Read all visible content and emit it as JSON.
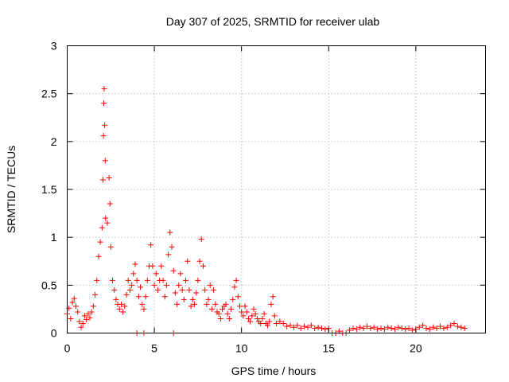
{
  "chart_data": {
    "type": "scatter",
    "title": "Day 307 of 2025, SRMTID for receiver ulab",
    "xlabel": "GPS time / hours",
    "ylabel": "SRMTID / TECUs",
    "xlim": [
      0,
      24
    ],
    "ylim": [
      0,
      3
    ],
    "xticks": [
      0,
      5,
      10,
      15,
      20
    ],
    "yticks": [
      0,
      0.5,
      1,
      1.5,
      2,
      2.5,
      3
    ],
    "xtick_labels": [
      "0",
      "5",
      "10",
      "15",
      "20"
    ],
    "ytick_labels": [
      "0",
      "0.5",
      "1",
      "1.5",
      "2",
      "2.5",
      "3"
    ],
    "grid": true,
    "marker": "plus",
    "color": "#ff0000",
    "series": [
      {
        "name": "SRMTID",
        "points": [
          [
            0.0,
            0.2
          ],
          [
            0.1,
            0.26
          ],
          [
            0.2,
            0.15
          ],
          [
            0.3,
            0.32
          ],
          [
            0.4,
            0.36
          ],
          [
            0.5,
            0.28
          ],
          [
            0.6,
            0.22
          ],
          [
            0.7,
            0.12
          ],
          [
            0.8,
            0.06
          ],
          [
            0.9,
            0.1
          ],
          [
            1.0,
            0.18
          ],
          [
            1.1,
            0.14
          ],
          [
            1.2,
            0.2
          ],
          [
            1.3,
            0.16
          ],
          [
            1.4,
            0.22
          ],
          [
            1.5,
            0.28
          ],
          [
            1.6,
            0.4
          ],
          [
            1.7,
            0.55
          ],
          [
            1.8,
            0.8
          ],
          [
            1.9,
            0.95
          ],
          [
            2.0,
            1.1
          ],
          [
            2.05,
            1.6
          ],
          [
            2.08,
            2.06
          ],
          [
            2.1,
            2.4
          ],
          [
            2.12,
            2.55
          ],
          [
            2.15,
            2.17
          ],
          [
            2.18,
            1.8
          ],
          [
            2.2,
            1.2
          ],
          [
            2.3,
            1.15
          ],
          [
            2.4,
            1.62
          ],
          [
            2.45,
            1.35
          ],
          [
            2.5,
            0.9
          ],
          [
            2.6,
            0.55
          ],
          [
            2.7,
            0.45
          ],
          [
            2.8,
            0.35
          ],
          [
            2.9,
            0.3
          ],
          [
            3.0,
            0.25
          ],
          [
            3.1,
            0.3
          ],
          [
            3.2,
            0.22
          ],
          [
            3.3,
            0.28
          ],
          [
            3.4,
            0.4
          ],
          [
            3.5,
            0.55
          ],
          [
            3.6,
            0.45
          ],
          [
            3.7,
            0.5
          ],
          [
            3.8,
            0.62
          ],
          [
            3.9,
            0.72
          ],
          [
            4.0,
            0.55
          ],
          [
            4.1,
            0.38
          ],
          [
            4.2,
            0.48
          ],
          [
            4.3,
            0.3
          ],
          [
            4.4,
            0.25
          ],
          [
            4.5,
            0.38
          ],
          [
            4.6,
            0.55
          ],
          [
            4.7,
            0.7
          ],
          [
            4.8,
            0.92
          ],
          [
            4.9,
            0.7
          ],
          [
            5.0,
            0.5
          ],
          [
            5.1,
            0.62
          ],
          [
            5.2,
            0.45
          ],
          [
            5.3,
            0.55
          ],
          [
            5.4,
            0.7
          ],
          [
            5.5,
            0.55
          ],
          [
            5.6,
            0.38
          ],
          [
            5.7,
            0.5
          ],
          [
            5.8,
            0.82
          ],
          [
            5.9,
            1.05
          ],
          [
            6.0,
            0.9
          ],
          [
            6.1,
            0.65
          ],
          [
            6.2,
            0.42
          ],
          [
            6.3,
            0.3
          ],
          [
            6.4,
            0.5
          ],
          [
            6.5,
            0.62
          ],
          [
            6.6,
            0.45
          ],
          [
            6.7,
            0.35
          ],
          [
            6.8,
            0.55
          ],
          [
            6.9,
            0.75
          ],
          [
            7.0,
            0.45
          ],
          [
            7.1,
            0.28
          ],
          [
            7.2,
            0.35
          ],
          [
            7.3,
            0.3
          ],
          [
            7.4,
            0.42
          ],
          [
            7.5,
            0.55
          ],
          [
            7.6,
            0.75
          ],
          [
            7.7,
            0.98
          ],
          [
            7.8,
            0.7
          ],
          [
            7.9,
            0.45
          ],
          [
            8.0,
            0.3
          ],
          [
            8.1,
            0.35
          ],
          [
            8.2,
            0.5
          ],
          [
            8.3,
            0.25
          ],
          [
            8.4,
            0.45
          ],
          [
            8.5,
            0.3
          ],
          [
            8.6,
            0.22
          ],
          [
            8.7,
            0.2
          ],
          [
            8.8,
            0.15
          ],
          [
            8.9,
            0.25
          ],
          [
            9.0,
            0.28
          ],
          [
            9.1,
            0.3
          ],
          [
            9.2,
            0.2
          ],
          [
            9.3,
            0.15
          ],
          [
            9.4,
            0.25
          ],
          [
            9.5,
            0.35
          ],
          [
            9.6,
            0.48
          ],
          [
            9.7,
            0.55
          ],
          [
            9.8,
            0.38
          ],
          [
            9.9,
            0.28
          ],
          [
            10.0,
            0.22
          ],
          [
            10.1,
            0.18
          ],
          [
            10.2,
            0.28
          ],
          [
            10.3,
            0.22
          ],
          [
            10.4,
            0.15
          ],
          [
            10.5,
            0.12
          ],
          [
            10.6,
            0.18
          ],
          [
            10.7,
            0.25
          ],
          [
            10.8,
            0.2
          ],
          [
            10.9,
            0.15
          ],
          [
            11.0,
            0.12
          ],
          [
            11.1,
            0.1
          ],
          [
            11.2,
            0.15
          ],
          [
            11.3,
            0.2
          ],
          [
            11.4,
            0.1
          ],
          [
            11.5,
            0.08
          ],
          [
            11.6,
            0.12
          ],
          [
            11.7,
            0.3
          ],
          [
            11.8,
            0.38
          ],
          [
            11.9,
            0.18
          ],
          [
            12.0,
            0.1
          ],
          [
            12.2,
            0.12
          ],
          [
            12.4,
            0.1
          ],
          [
            12.6,
            0.07
          ],
          [
            12.8,
            0.08
          ],
          [
            13.0,
            0.06
          ],
          [
            13.2,
            0.08
          ],
          [
            13.4,
            0.05
          ],
          [
            13.6,
            0.07
          ],
          [
            13.8,
            0.06
          ],
          [
            14.0,
            0.08
          ],
          [
            14.2,
            0.05
          ],
          [
            14.4,
            0.06
          ],
          [
            14.6,
            0.05
          ],
          [
            14.8,
            0.04
          ],
          [
            15.0,
            0.05
          ],
          [
            15.2,
            0.0
          ],
          [
            15.4,
            0.0
          ],
          [
            15.6,
            0.02
          ],
          [
            15.8,
            0.0
          ],
          [
            16.0,
            0.0
          ],
          [
            16.2,
            0.03
          ],
          [
            16.4,
            0.05
          ],
          [
            16.6,
            0.04
          ],
          [
            16.8,
            0.06
          ],
          [
            17.0,
            0.05
          ],
          [
            17.2,
            0.07
          ],
          [
            17.4,
            0.05
          ],
          [
            17.6,
            0.06
          ],
          [
            17.8,
            0.04
          ],
          [
            18.0,
            0.05
          ],
          [
            18.2,
            0.04
          ],
          [
            18.4,
            0.06
          ],
          [
            18.6,
            0.05
          ],
          [
            18.8,
            0.04
          ],
          [
            19.0,
            0.06
          ],
          [
            19.2,
            0.05
          ],
          [
            19.4,
            0.04
          ],
          [
            19.6,
            0.05
          ],
          [
            19.8,
            0.03
          ],
          [
            20.0,
            0.04
          ],
          [
            20.2,
            0.06
          ],
          [
            20.4,
            0.08
          ],
          [
            20.6,
            0.05
          ],
          [
            20.8,
            0.04
          ],
          [
            21.0,
            0.06
          ],
          [
            21.2,
            0.05
          ],
          [
            21.4,
            0.07
          ],
          [
            21.6,
            0.05
          ],
          [
            21.8,
            0.06
          ],
          [
            22.0,
            0.08
          ],
          [
            22.2,
            0.1
          ],
          [
            22.4,
            0.07
          ],
          [
            22.6,
            0.06
          ],
          [
            22.8,
            0.05
          ],
          [
            4.0,
            0.0
          ],
          [
            4.4,
            0.0
          ],
          [
            6.1,
            0.0
          ]
        ]
      }
    ]
  }
}
